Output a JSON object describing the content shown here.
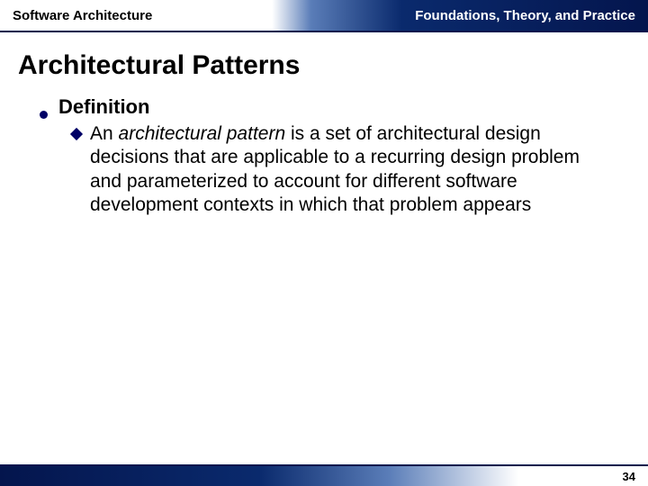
{
  "header": {
    "left": "Software Architecture",
    "right": "Foundations, Theory, and Practice"
  },
  "title": "Architectural Patterns",
  "content": {
    "l1": "Definition",
    "l2_prefix": "An ",
    "l2_italic": "architectural pattern",
    "l2_rest": " is a set of architectural design decisions that are applicable to a recurring design problem and parameterized to account for different software development contexts in which that problem appears"
  },
  "page_number": "34",
  "colors": {
    "bullet": "#000066",
    "header_dark": "#04154d",
    "header_mid": "#0a2a6d",
    "header_light": "#5a7db8",
    "background": "#ffffff",
    "text": "#000000"
  },
  "typography": {
    "title_fontsize": 30,
    "l1_fontsize": 22,
    "l2_fontsize": 21,
    "header_fontsize": 15,
    "pagenum_fontsize": 13,
    "font_family": "Verdana"
  }
}
